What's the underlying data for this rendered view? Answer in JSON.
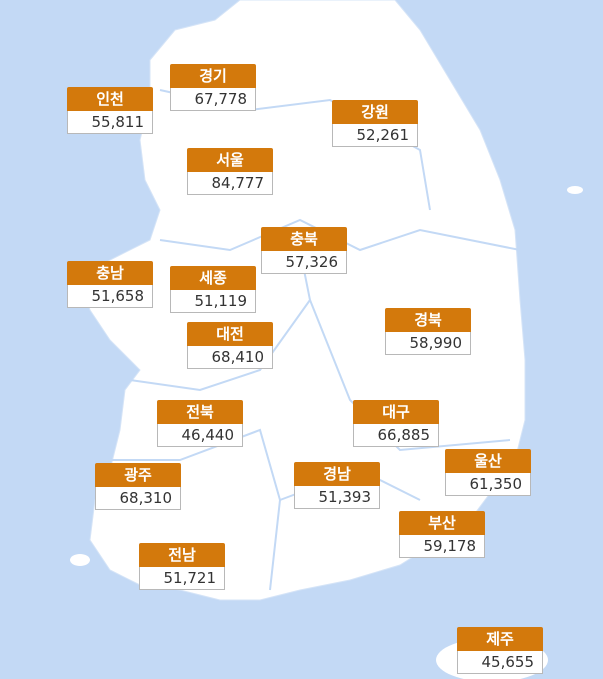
{
  "regions": [
    {
      "name": "인천",
      "value": "55,811"
    },
    {
      "name": "경기",
      "value": "67,778"
    },
    {
      "name": "강원",
      "value": "52,261"
    },
    {
      "name": "서울",
      "value": "84,777"
    },
    {
      "name": "충북",
      "value": "57,326"
    },
    {
      "name": "충남",
      "value": "51,658"
    },
    {
      "name": "세종",
      "value": "51,119"
    },
    {
      "name": "대전",
      "value": "68,410"
    },
    {
      "name": "경북",
      "value": "58,990"
    },
    {
      "name": "전북",
      "value": "46,440"
    },
    {
      "name": "대구",
      "value": "66,885"
    },
    {
      "name": "울산",
      "value": "61,350"
    },
    {
      "name": "광주",
      "value": "68,310"
    },
    {
      "name": "경남",
      "value": "51,393"
    },
    {
      "name": "부산",
      "value": "59,178"
    },
    {
      "name": "전남",
      "value": "51,721"
    },
    {
      "name": "제주",
      "value": "45,655"
    }
  ]
}
